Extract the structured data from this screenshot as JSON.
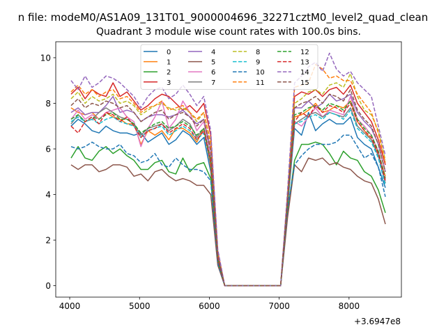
{
  "chart_data": {
    "type": "line",
    "suptitle": "n file: modeM0/AS1A09_131T01_9000004696_32271cztM0_level2_quad_clean",
    "title": "Quadrant 3 module wise count rates with 100.0s bins.",
    "xlabel": "",
    "ylabel": "",
    "offset_label": "+3.6947e8",
    "xlim": [
      3800,
      8750
    ],
    "ylim": [
      -0.5,
      10.7
    ],
    "xticks": [
      4000,
      5000,
      6000,
      7000,
      8000
    ],
    "xtick_labels": [
      "4000",
      "5000",
      "6000",
      "7000",
      "8000"
    ],
    "yticks": [
      0,
      2,
      4,
      6,
      8,
      10
    ],
    "ytick_labels": [
      "0",
      "2",
      "4",
      "6",
      "8",
      "10"
    ],
    "grid": false,
    "legend_position": "top-center",
    "legend_columns": 4,
    "x": [
      4020,
      4120,
      4220,
      4320,
      4420,
      4520,
      4620,
      4720,
      4820,
      4920,
      5020,
      5120,
      5220,
      5320,
      5420,
      5520,
      5620,
      5720,
      5820,
      5920,
      6020,
      6120,
      6220,
      6320,
      6420,
      6520,
      6620,
      6720,
      6820,
      6920,
      7020,
      7120,
      7220,
      7320,
      7420,
      7520,
      7620,
      7720,
      7820,
      7920,
      8020,
      8120,
      8220,
      8320,
      8420,
      8520
    ],
    "series": [
      {
        "name": "0",
        "color": "#1f77b4",
        "style": "solid",
        "values": [
          7.0,
          7.3,
          7.1,
          6.8,
          6.7,
          7.0,
          6.8,
          6.7,
          6.7,
          6.6,
          6.7,
          6.3,
          6.5,
          6.7,
          6.2,
          6.4,
          6.8,
          6.6,
          6.2,
          6.5,
          5.0,
          1.2,
          0,
          0,
          0,
          0,
          0,
          0,
          0,
          0,
          0,
          3.5,
          6.9,
          6.6,
          7.6,
          6.8,
          7.1,
          7.3,
          7.1,
          7.1,
          7.4,
          6.5,
          6.2,
          6.0,
          5.2,
          4.3
        ]
      },
      {
        "name": "1",
        "color": "#ff7f0e",
        "style": "solid",
        "values": [
          7.8,
          7.6,
          7.5,
          7.6,
          7.3,
          7.6,
          7.4,
          7.3,
          7.1,
          7.1,
          6.2,
          6.8,
          6.6,
          6.8,
          6.4,
          6.9,
          6.9,
          6.7,
          6.3,
          6.9,
          5.2,
          1.2,
          0,
          0,
          0,
          0,
          0,
          0,
          0,
          0,
          0,
          3.7,
          7.4,
          7.5,
          7.7,
          8.0,
          7.6,
          7.7,
          7.9,
          7.8,
          8.1,
          7.2,
          6.8,
          6.4,
          5.8,
          4.8
        ]
      },
      {
        "name": "2",
        "color": "#2ca02c",
        "style": "solid",
        "values": [
          5.6,
          6.1,
          5.6,
          5.5,
          5.9,
          6.1,
          5.8,
          6.0,
          5.7,
          5.5,
          5.1,
          5.1,
          5.4,
          5.5,
          5.0,
          4.9,
          5.6,
          5.0,
          5.3,
          5.4,
          4.7,
          1.0,
          0,
          0,
          0,
          0,
          0,
          0,
          0,
          0,
          0,
          3.2,
          5.5,
          6.2,
          6.2,
          6.3,
          6.2,
          5.8,
          5.3,
          5.9,
          5.6,
          5.5,
          5.0,
          4.8,
          4.2,
          3.2
        ]
      },
      {
        "name": "3",
        "color": "#d62728",
        "style": "solid",
        "values": [
          8.4,
          8.7,
          8.2,
          8.6,
          8.4,
          8.3,
          8.9,
          8.3,
          8.5,
          8.1,
          7.7,
          7.9,
          8.2,
          8.4,
          8.3,
          8.0,
          7.7,
          7.9,
          7.6,
          8.0,
          6.6,
          1.5,
          0,
          0,
          0,
          0,
          0,
          0,
          0,
          0,
          0,
          4.0,
          8.3,
          8.5,
          8.4,
          8.6,
          8.3,
          8.6,
          8.7,
          8.4,
          8.8,
          8.0,
          7.6,
          7.2,
          6.4,
          5.3
        ]
      },
      {
        "name": "4",
        "color": "#9467bd",
        "style": "solid",
        "values": [
          7.6,
          7.8,
          7.5,
          7.6,
          7.6,
          7.9,
          8.3,
          7.6,
          7.7,
          7.6,
          7.2,
          7.4,
          7.5,
          7.5,
          7.4,
          7.5,
          7.7,
          7.4,
          7.1,
          7.3,
          6.0,
          1.3,
          0,
          0,
          0,
          0,
          0,
          0,
          0,
          0,
          0,
          3.9,
          7.8,
          7.8,
          8.1,
          7.8,
          8.0,
          8.4,
          8.1,
          8.2,
          8.4,
          7.6,
          7.2,
          6.9,
          6.2,
          5.0
        ]
      },
      {
        "name": "5",
        "color": "#8c564b",
        "style": "solid",
        "values": [
          5.3,
          5.1,
          5.3,
          5.3,
          5.0,
          5.1,
          5.3,
          5.3,
          5.2,
          4.8,
          4.9,
          4.6,
          5.0,
          5.1,
          4.8,
          4.6,
          4.7,
          4.6,
          4.4,
          4.4,
          4.0,
          0.9,
          0,
          0,
          0,
          0,
          0,
          0,
          0,
          0,
          0,
          3.0,
          5.3,
          5.0,
          5.6,
          5.5,
          5.6,
          5.3,
          5.4,
          5.2,
          5.1,
          4.8,
          4.6,
          4.5,
          3.8,
          2.7
        ]
      },
      {
        "name": "6",
        "color": "#e377c2",
        "style": "solid",
        "values": [
          7.3,
          7.7,
          7.3,
          7.5,
          7.3,
          7.6,
          7.7,
          7.8,
          7.4,
          7.2,
          6.1,
          6.9,
          7.4,
          8.1,
          6.9,
          7.3,
          8.1,
          7.6,
          6.8,
          7.2,
          5.6,
          1.3,
          0,
          0,
          0,
          0,
          0,
          0,
          0,
          0,
          0,
          3.8,
          7.2,
          7.0,
          7.4,
          7.8,
          7.4,
          7.7,
          7.6,
          7.5,
          8.3,
          7.3,
          7.0,
          6.6,
          5.9,
          4.6
        ]
      },
      {
        "name": "7",
        "color": "#7f7f7f",
        "style": "solid",
        "values": [
          7.1,
          7.5,
          7.2,
          7.3,
          7.6,
          7.8,
          7.6,
          7.4,
          7.3,
          7.1,
          6.6,
          6.9,
          7.0,
          7.1,
          6.8,
          7.0,
          7.3,
          7.1,
          6.5,
          6.9,
          5.4,
          1.2,
          0,
          0,
          0,
          0,
          0,
          0,
          0,
          0,
          0,
          3.6,
          7.1,
          7.3,
          7.5,
          7.6,
          7.4,
          7.6,
          7.5,
          7.4,
          7.8,
          7.0,
          6.7,
          6.4,
          5.7,
          4.5
        ]
      },
      {
        "name": "8",
        "color": "#bcbd22",
        "style": "dashed",
        "values": [
          8.2,
          8.5,
          8.0,
          8.3,
          8.1,
          8.2,
          8.4,
          8.0,
          8.1,
          7.9,
          7.5,
          7.7,
          7.9,
          8.0,
          7.8,
          7.7,
          7.8,
          7.6,
          7.2,
          7.6,
          6.3,
          1.4,
          0,
          0,
          0,
          0,
          0,
          0,
          0,
          0,
          0,
          3.9,
          8.0,
          8.2,
          8.5,
          8.6,
          8.4,
          8.8,
          8.9,
          8.7,
          9.3,
          8.3,
          7.7,
          7.5,
          6.8,
          5.5
        ]
      },
      {
        "name": "9",
        "color": "#17becf",
        "style": "dashed",
        "values": [
          7.2,
          7.4,
          7.2,
          7.3,
          7.1,
          7.3,
          7.4,
          7.2,
          7.1,
          7.0,
          6.5,
          6.8,
          6.9,
          7.0,
          6.6,
          6.8,
          7.0,
          6.8,
          6.4,
          6.7,
          5.3,
          1.2,
          0,
          0,
          0,
          0,
          0,
          0,
          0,
          0,
          0,
          3.6,
          7.1,
          7.2,
          7.4,
          7.5,
          7.3,
          7.6,
          7.5,
          7.3,
          7.7,
          6.9,
          6.6,
          6.3,
          5.6,
          4.4
        ]
      },
      {
        "name": "10",
        "color": "#1f77b4",
        "style": "dashed",
        "values": [
          6.1,
          6.0,
          6.1,
          6.3,
          6.1,
          6.0,
          6.0,
          6.2,
          5.8,
          5.7,
          5.4,
          5.5,
          5.8,
          5.3,
          5.2,
          5.6,
          5.3,
          5.1,
          5.1,
          5.0,
          4.6,
          1.0,
          0,
          0,
          0,
          0,
          0,
          0,
          0,
          0,
          0,
          3.4,
          5.3,
          5.7,
          6.0,
          6.2,
          6.2,
          6.2,
          6.3,
          6.6,
          6.6,
          6.1,
          5.6,
          5.8,
          5.2,
          3.9
        ]
      },
      {
        "name": "11",
        "color": "#ff7f0e",
        "style": "dashed",
        "values": [
          8.5,
          8.8,
          8.4,
          8.6,
          8.3,
          8.5,
          8.6,
          8.2,
          8.3,
          8.0,
          7.6,
          7.8,
          7.9,
          8.1,
          7.7,
          7.8,
          7.9,
          7.6,
          7.3,
          7.6,
          6.2,
          1.4,
          0,
          0,
          0,
          0,
          0,
          0,
          0,
          0,
          0,
          4.0,
          8.7,
          8.8,
          8.9,
          9.7,
          9.5,
          9.1,
          9.2,
          9.0,
          9.0,
          8.4,
          8.0,
          7.6,
          6.7,
          5.4
        ]
      },
      {
        "name": "12",
        "color": "#2ca02c",
        "style": "dashed",
        "values": [
          7.3,
          7.5,
          7.2,
          7.4,
          7.3,
          7.5,
          7.6,
          7.3,
          7.3,
          7.1,
          6.7,
          6.9,
          7.1,
          7.2,
          6.9,
          7.0,
          7.2,
          7.0,
          6.6,
          6.9,
          5.5,
          1.2,
          0,
          0,
          0,
          0,
          0,
          0,
          0,
          0,
          0,
          3.7,
          7.5,
          7.6,
          7.8,
          7.9,
          7.7,
          8.0,
          7.9,
          7.7,
          8.1,
          7.3,
          6.9,
          6.6,
          5.9,
          4.7
        ]
      },
      {
        "name": "13",
        "color": "#d62728",
        "style": "dashed",
        "values": [
          7.0,
          6.7,
          7.2,
          7.4,
          7.1,
          7.6,
          7.5,
          7.2,
          7.4,
          7.0,
          6.5,
          6.8,
          6.9,
          7.1,
          6.7,
          6.9,
          7.1,
          6.9,
          6.4,
          6.8,
          5.4,
          1.2,
          0,
          0,
          0,
          0,
          0,
          0,
          0,
          0,
          0,
          3.7,
          7.2,
          7.6,
          7.4,
          7.9,
          7.6,
          7.9,
          7.8,
          7.6,
          8.0,
          7.2,
          6.8,
          6.5,
          5.8,
          4.6
        ]
      },
      {
        "name": "14",
        "color": "#9467bd",
        "style": "dashed",
        "values": [
          9.0,
          8.6,
          9.2,
          8.7,
          8.9,
          9.2,
          9.1,
          8.9,
          8.6,
          8.3,
          7.8,
          8.3,
          8.6,
          8.7,
          8.2,
          8.4,
          8.8,
          8.4,
          7.9,
          8.3,
          6.8,
          1.6,
          0,
          0,
          0,
          0,
          0,
          0,
          0,
          0,
          0,
          4.2,
          8.9,
          9.2,
          9.6,
          9.8,
          9.4,
          10.2,
          9.5,
          9.2,
          9.4,
          8.9,
          8.6,
          8.3,
          7.0,
          5.7
        ]
      },
      {
        "name": "15",
        "color": "#8c564b",
        "style": "dashed",
        "values": [
          7.9,
          8.2,
          7.8,
          8.0,
          7.9,
          8.1,
          8.0,
          7.8,
          7.9,
          7.6,
          7.2,
          7.4,
          7.6,
          7.7,
          7.3,
          7.5,
          7.6,
          7.4,
          7.0,
          7.3,
          5.9,
          1.3,
          0,
          0,
          0,
          0,
          0,
          0,
          0,
          0,
          0,
          3.8,
          7.8,
          8.0,
          8.1,
          8.3,
          8.0,
          8.4,
          8.3,
          8.1,
          8.6,
          7.7,
          7.3,
          7.0,
          6.2,
          5.0
        ]
      }
    ]
  }
}
